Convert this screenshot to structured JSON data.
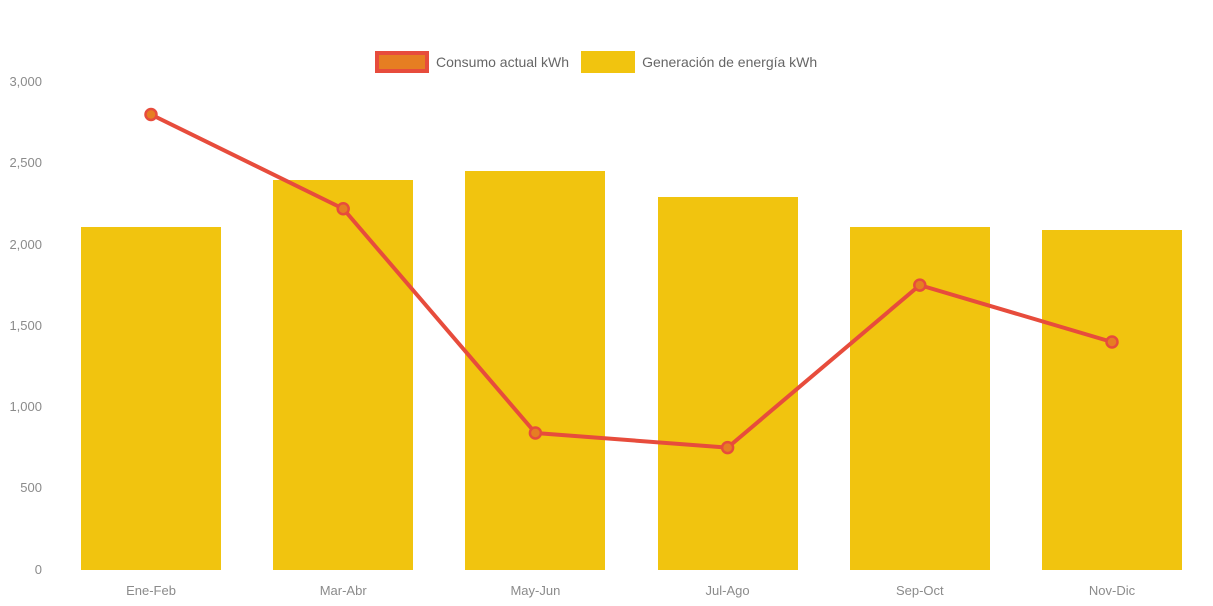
{
  "chart_data": {
    "type": "bar",
    "subtype": "combo-bar-line",
    "title": "",
    "categories": [
      "Ene-Feb",
      "Mar-Abr",
      "May-Jun",
      "Jul-Ago",
      "Sep-Oct",
      "Nov-Dic"
    ],
    "series": [
      {
        "name": "Consumo actual kWh",
        "type": "line",
        "values": [
          2800,
          2220,
          840,
          750,
          1750,
          1400
        ]
      },
      {
        "name": "Generación de energía kWh",
        "type": "bar",
        "values": [
          2110,
          2400,
          2450,
          2290,
          2110,
          2090
        ]
      }
    ],
    "xlabel": "",
    "ylabel": "",
    "ylim": [
      0,
      3000
    ],
    "ytick_step": 500,
    "ytick_labels": [
      "0",
      "500",
      "1,000",
      "1,500",
      "2,000",
      "2,500",
      "3,000"
    ],
    "grid": "off",
    "axis_lines": "off",
    "legend_position": "top-center",
    "line_has_point_markers": true
  },
  "legend": {
    "items": [
      {
        "label": "Consumo actual kWh",
        "swatch_fill": "#E67E22",
        "swatch_border": "#E74C3C"
      },
      {
        "label": "Generación de energía kWh",
        "swatch_fill": "#F1C40F",
        "swatch_border": "#F1C40F"
      }
    ]
  },
  "colors": {
    "bar": "#F1C40F",
    "line": "#E74C3C",
    "point_fill": "#E67E22",
    "point_stroke": "#E74C3C",
    "axis_label_text": "#8B8B8B",
    "legend_label_text": "#666666",
    "background": "#FFFFFF"
  }
}
